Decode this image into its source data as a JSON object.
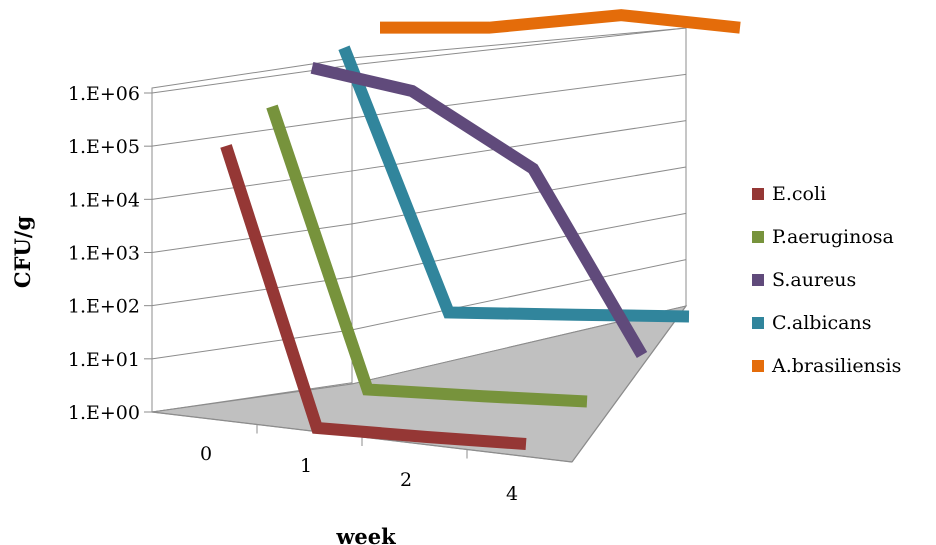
{
  "chart_data": {
    "type": "line",
    "subtype": "3d-line",
    "title": "",
    "xlabel": "week",
    "ylabel": "CFU/g",
    "yscale": "log",
    "y_ticks": [
      "1.E+00",
      "1.E+01",
      "1.E+02",
      "1.E+03",
      "1.E+04",
      "1.E+05",
      "1.E+06"
    ],
    "ylim": [
      1,
      1000000
    ],
    "categories": [
      "0",
      "1",
      "2",
      "4"
    ],
    "grid": true,
    "legend_position": "right",
    "series": [
      {
        "name": "E.coli",
        "color": "#953735",
        "values": [
          300000,
          1,
          1,
          1
        ]
      },
      {
        "name": "P.aeruginosa",
        "color": "#77933c",
        "values": [
          600000,
          1,
          1,
          1
        ]
      },
      {
        "name": "S.aureus",
        "color": "#604a7b",
        "values": [
          1000000,
          400000,
          10000,
          1
        ]
      },
      {
        "name": "C.albicans",
        "color": "#31859c",
        "values": [
          1000000,
          1,
          1,
          1
        ]
      },
      {
        "name": "A.brasiliensis",
        "color": "#e46c0a",
        "values": [
          1000000,
          1000000,
          2000000,
          1000000
        ]
      }
    ]
  }
}
